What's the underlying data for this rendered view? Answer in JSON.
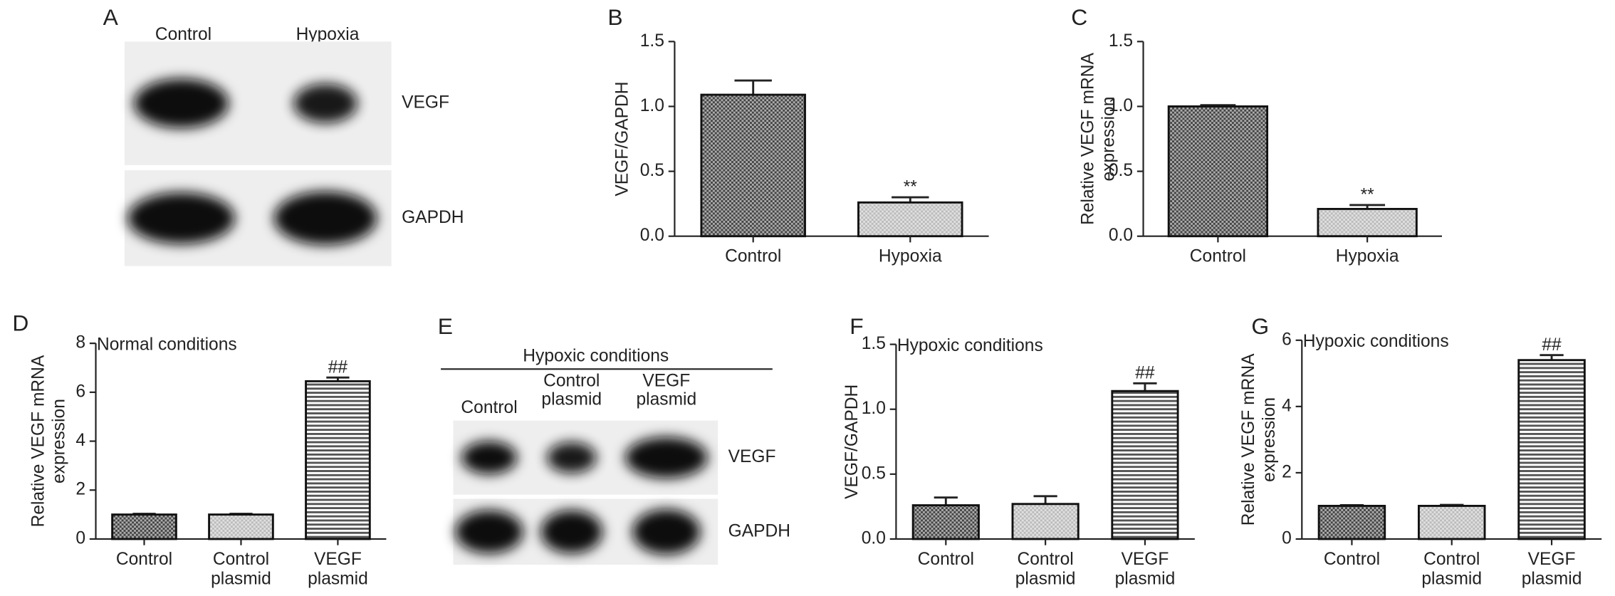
{
  "blots": [
    {
      "panel": "A",
      "columns": [
        "Control",
        "Hypoxia"
      ],
      "rows": [
        "VEGF",
        "GAPDH"
      ]
    },
    {
      "panel": "E",
      "title": "Hypoxic conditions",
      "columns": [
        "Control",
        "Control plasmid",
        "VEGF plasmid"
      ],
      "rows": [
        "VEGF",
        "GAPDH"
      ]
    }
  ],
  "chart_data": [
    {
      "type": "bar",
      "panel": "B",
      "ylabel": [
        "VEGF/GAPDH"
      ],
      "categories": [
        "Control",
        "Hypoxia"
      ],
      "values": [
        1.09,
        0.26
      ],
      "errors": [
        0.11,
        0.04
      ],
      "colors": [
        "#444444",
        "#bbbbbb"
      ],
      "hatch": [
        "checker",
        "checker"
      ],
      "annotations": [
        {
          "index": 1,
          "text": "**"
        }
      ],
      "ylim": [
        0,
        1.5
      ],
      "yticks": [
        {
          "value": 0,
          "label": "0.0"
        },
        {
          "value": 0.5,
          "label": "0.5"
        },
        {
          "value": 1,
          "label": "1.0"
        },
        {
          "value": 1.5,
          "label": "1.5"
        }
      ]
    },
    {
      "type": "bar",
      "panel": "C",
      "ylabel": [
        "Relative VEGF mRNA",
        "expression"
      ],
      "categories": [
        "Control",
        "Hypoxia"
      ],
      "values": [
        1.0,
        0.21
      ],
      "errors": [
        0.01,
        0.03
      ],
      "colors": [
        "#444444",
        "#bbbbbb"
      ],
      "hatch": [
        "checker",
        "checker"
      ],
      "annotations": [
        {
          "index": 1,
          "text": "**"
        }
      ],
      "ylim": [
        0,
        1.5
      ],
      "yticks": [
        {
          "value": 0,
          "label": "0.0"
        },
        {
          "value": 0.5,
          "label": "0.5"
        },
        {
          "value": 1,
          "label": "1.0"
        },
        {
          "value": 1.5,
          "label": "1.5"
        }
      ]
    },
    {
      "type": "bar",
      "panel": "D",
      "subtitle": "Normal conditions",
      "ylabel": [
        "Relative VEGF mRNA",
        "expression"
      ],
      "categories": [
        "Control",
        "Control plasmid",
        "VEGF plasmid"
      ],
      "values": [
        1.0,
        1.0,
        6.45
      ],
      "errors": [
        0.03,
        0.03,
        0.15
      ],
      "colors": [
        "#444444",
        "#bbbbbb",
        "#555555"
      ],
      "hatch": [
        "checker",
        "checker",
        "stripes"
      ],
      "annotations": [
        {
          "index": 2,
          "text": "##"
        }
      ],
      "ylim": [
        0,
        8
      ],
      "yticks": [
        0,
        2,
        4,
        6,
        8
      ]
    },
    {
      "type": "bar",
      "panel": "F",
      "subtitle": "Hypoxic conditions",
      "ylabel": [
        "VEGF/GAPDH"
      ],
      "categories": [
        "Control",
        "Control plasmid",
        "VEGF plasmid"
      ],
      "values": [
        0.26,
        0.27,
        1.14
      ],
      "errors": [
        0.06,
        0.06,
        0.06
      ],
      "colors": [
        "#444444",
        "#bbbbbb",
        "#555555"
      ],
      "hatch": [
        "checker",
        "checker",
        "stripes"
      ],
      "annotations": [
        {
          "index": 2,
          "text": "##"
        }
      ],
      "ylim": [
        0,
        1.5
      ],
      "yticks": [
        {
          "value": 0,
          "label": "0.0"
        },
        {
          "value": 0.5,
          "label": "0.5"
        },
        {
          "value": 1,
          "label": "1.0"
        },
        {
          "value": 1.5,
          "label": "1.5"
        }
      ]
    },
    {
      "type": "bar",
      "panel": "G",
      "subtitle": "Hypoxic conditions",
      "ylabel": [
        "Relative VEGF mRNA",
        "expression"
      ],
      "categories": [
        "Control",
        "Control plasmid",
        "VEGF plasmid"
      ],
      "values": [
        1.0,
        1.0,
        5.4
      ],
      "errors": [
        0.02,
        0.03,
        0.15
      ],
      "colors": [
        "#444444",
        "#bbbbbb",
        "#555555"
      ],
      "hatch": [
        "checker",
        "checker",
        "stripes"
      ],
      "annotations": [
        {
          "index": 2,
          "text": "##"
        }
      ],
      "ylim": [
        0,
        6
      ],
      "yticks": [
        0,
        2,
        4,
        6
      ]
    }
  ]
}
